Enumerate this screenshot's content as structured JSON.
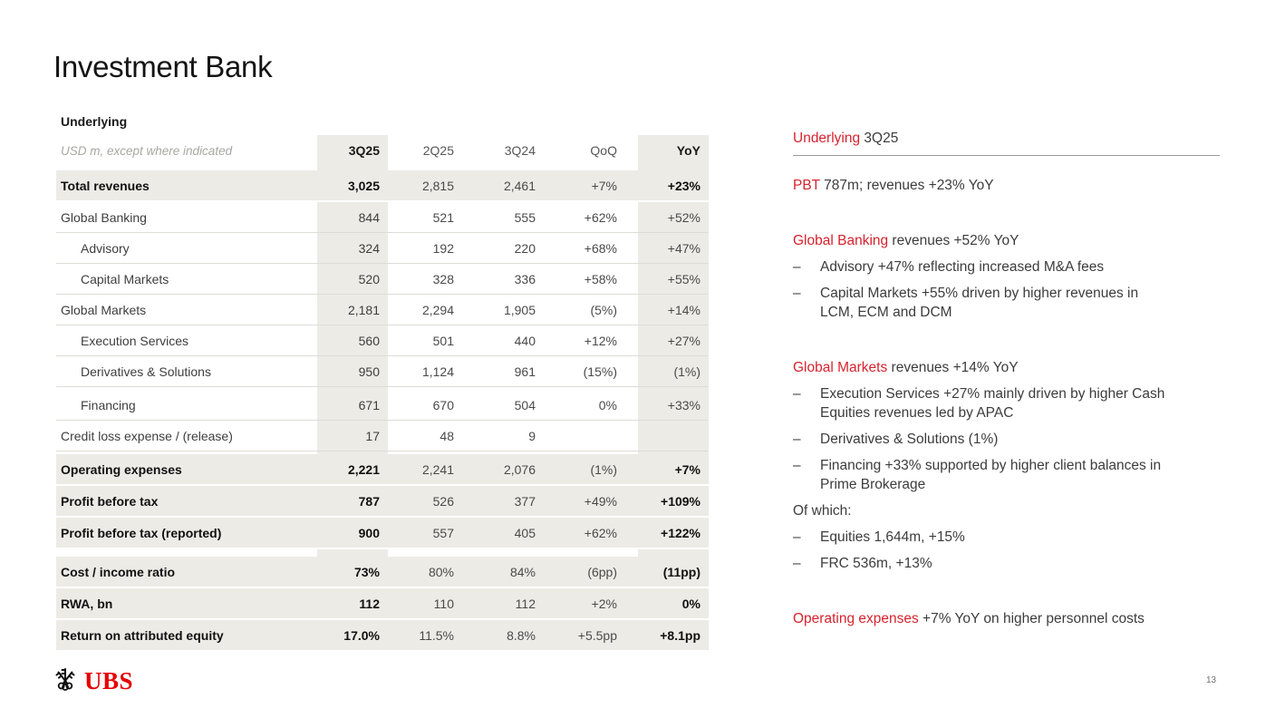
{
  "slide": {
    "title": "Investment Bank",
    "page_number": "13",
    "logo_text": "UBS"
  },
  "colors": {
    "accent_red": "#D6232E",
    "logo_red": "#E60000",
    "highlight_gray": "#ECEBE6"
  },
  "table": {
    "section_label": "Underlying",
    "unit_note": "USD m, except where indicated",
    "columns": [
      "3Q25",
      "2Q25",
      "3Q24",
      "QoQ",
      "YoY"
    ],
    "rows": [
      {
        "label": "Total revenues",
        "indent": 0,
        "style": "highlight",
        "values": [
          "3,025",
          "2,815",
          "2,461",
          "+7%",
          "+23%"
        ]
      },
      {
        "label": "Global Banking",
        "indent": 0,
        "style": "regular",
        "values": [
          "844",
          "521",
          "555",
          "+62%",
          "+52%"
        ]
      },
      {
        "label": "Advisory",
        "indent": 1,
        "style": "regular",
        "values": [
          "324",
          "192",
          "220",
          "+68%",
          "+47%"
        ]
      },
      {
        "label": "Capital Markets",
        "indent": 1,
        "style": "regular",
        "values": [
          "520",
          "328",
          "336",
          "+58%",
          "+55%"
        ]
      },
      {
        "label": "Global Markets",
        "indent": 0,
        "style": "regular",
        "values": [
          "2,181",
          "2,294",
          "1,905",
          "(5%)",
          "+14%"
        ]
      },
      {
        "label": "Execution Services",
        "indent": 1,
        "style": "regular",
        "values": [
          "560",
          "501",
          "440",
          "+12%",
          "+27%"
        ]
      },
      {
        "label": "Derivatives & Solutions",
        "indent": 1,
        "style": "regular",
        "values": [
          "950",
          "1,124",
          "961",
          "(15%)",
          "(1%)"
        ]
      },
      {
        "label": "Financing",
        "indent": 1,
        "style": "regular",
        "gap_before": "sm",
        "values": [
          "671",
          "670",
          "504",
          "0%",
          "+33%"
        ]
      },
      {
        "label": "Credit loss expense / (release)",
        "indent": 0,
        "style": "regular",
        "values": [
          "17",
          "48",
          "9",
          "",
          ""
        ]
      },
      {
        "label": "Operating expenses",
        "indent": 0,
        "style": "highlight",
        "gap_before": "sm",
        "values": [
          "2,221",
          "2,241",
          "2,076",
          "(1%)",
          "+7%"
        ]
      },
      {
        "label": "Profit before tax",
        "indent": 0,
        "style": "highlight",
        "values": [
          "787",
          "526",
          "377",
          "+49%",
          "+109%"
        ]
      },
      {
        "label": "Profit before tax (reported)",
        "indent": 0,
        "style": "highlight",
        "values": [
          "900",
          "557",
          "405",
          "+62%",
          "+122%"
        ]
      },
      {
        "label": "Cost / income ratio",
        "indent": 0,
        "style": "highlight",
        "gap_before": "md",
        "values": [
          "73%",
          "80%",
          "84%",
          "(6pp)",
          "(11pp)"
        ]
      },
      {
        "label": "RWA, bn",
        "indent": 0,
        "style": "highlight",
        "values": [
          "112",
          "110",
          "112",
          "+2%",
          "0%"
        ]
      },
      {
        "label": "Return on attributed equity",
        "indent": 0,
        "style": "highlight",
        "values": [
          "17.0%",
          "11.5%",
          "8.8%",
          "+5.5pp",
          "+8.1pp"
        ]
      }
    ]
  },
  "commentary": {
    "heading": {
      "lead": "Underlying",
      "rest": " 3Q25"
    },
    "bullet_char": "–",
    "blocks": [
      {
        "type": "para",
        "gap": "md",
        "lead": "PBT",
        "rest": " 787m; revenues +23% YoY"
      },
      {
        "type": "para",
        "gap": "lg",
        "lead": "Global Banking",
        "rest": " revenues +52% YoY"
      },
      {
        "type": "bullet",
        "gap": "sm",
        "text": "Advisory +47% reflecting increased M&A fees"
      },
      {
        "type": "bullet",
        "gap": "sm",
        "text": "Capital Markets +55% driven by higher revenues in\nLCM, ECM and DCM"
      },
      {
        "type": "para",
        "gap": "lg",
        "lead": "Global Markets",
        "rest": " revenues +14% YoY"
      },
      {
        "type": "bullet",
        "gap": "sm",
        "text": "Execution Services +27% mainly driven by higher Cash\nEquities revenues led by APAC"
      },
      {
        "type": "bullet",
        "gap": "sm",
        "text": "Derivatives & Solutions (1%)"
      },
      {
        "type": "bullet",
        "gap": "sm",
        "text": "Financing +33% supported by higher client balances in\nPrime Brokerage"
      },
      {
        "type": "para",
        "gap": "sm",
        "lead": "",
        "rest": "Of which:"
      },
      {
        "type": "bullet",
        "gap": "sm",
        "text": "Equities 1,644m, +15%"
      },
      {
        "type": "bullet",
        "gap": "sm",
        "text": "FRC 536m, +13%"
      },
      {
        "type": "para",
        "gap": "lg",
        "lead": "Operating expenses",
        "rest": " +7% YoY on higher personnel costs"
      }
    ]
  }
}
